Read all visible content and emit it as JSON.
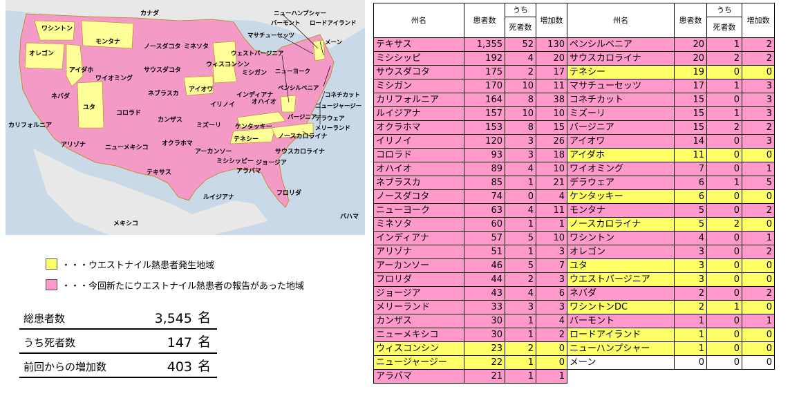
{
  "map": {
    "colors": {
      "water": "#c9d9e8",
      "land": "#e8e8e8",
      "yellow": "#ffff99",
      "pink": "#f49ac6",
      "border": "#b8860b"
    },
    "labels": {
      "canada": "カナダ",
      "washington": "ワシントン",
      "montana": "モンタナ",
      "oregon": "オレゴン",
      "idaho": "アイダホ",
      "north_dakota": "ノースダコタ",
      "minnesota": "ミネソタ",
      "south_dakota": "サウスダコタ",
      "wyoming": "ワイオミング",
      "wisconsin": "ウィスコンシン",
      "michigan": "ミシガン",
      "nebraska": "ネブラスカ",
      "iowa": "アイオワ",
      "illinois": "イリノイ",
      "indiana": "インディアナ",
      "ohio": "オハイオ",
      "nevada": "ネバダ",
      "utah": "ユタ",
      "colorado": "コロラド",
      "kansas": "カンザス",
      "missouri": "ミズーリ",
      "kentucky": "ケンタッキー",
      "california": "カリフォルニア",
      "arizona": "アリゾナ",
      "new_mexico": "ニューメキシコ",
      "oklahoma": "オクラホマ",
      "arkansas": "アーカンソー",
      "tennessee": "テネシー",
      "north_carolina": "ノースカロライナ",
      "south_carolina": "サウスカロライナ",
      "mississippi": "ミシシッピー",
      "alabama": "アラバマ",
      "georgia": "ジョージア",
      "texas": "テキサス",
      "louisiana": "ルイジアナ",
      "florida": "フロリダ",
      "mexico": "メキシコ",
      "bahamas": "バハマ",
      "new_hampshire": "ニューハンプシャー",
      "vermont": "バーモント",
      "rhode_island": "ロードアイランド",
      "massachusetts": "マサチューセッツ",
      "maine": "メーン",
      "west_virginia": "ウェストバージニア",
      "new_york": "ニューヨーク",
      "pennsylvania": "ペンシルベニア",
      "connecticut": "コネチカット",
      "new_jersey": "ニュージャージー",
      "virginia": "バージニア",
      "delaware": "デラウェア",
      "maryland": "メリーランド"
    }
  },
  "legend": {
    "yellow_text": "・・・ウエストナイル熱患者発生地域",
    "pink_text": "・・・今回新たにウエストナイル熱患者の報告があった地域",
    "yellow_color": "#ffff66",
    "pink_color": "#ff99cc"
  },
  "summary": [
    {
      "label": "総患者数",
      "value": "3,545",
      "unit": "名"
    },
    {
      "label": "うち死者数",
      "value": "147",
      "unit": "名"
    },
    {
      "label": "前回からの増加数",
      "value": "403",
      "unit": "名"
    }
  ],
  "table": {
    "headers": {
      "state": "州名",
      "patients": "患者数",
      "uchi": "うち",
      "deaths": "死者数",
      "increase": "増加数"
    },
    "left": [
      {
        "state": "テキサス",
        "patients": "1,355",
        "deaths": "52",
        "increase": "130",
        "color": "pink"
      },
      {
        "state": "ミシシッピ",
        "patients": "192",
        "deaths": "4",
        "increase": "20",
        "color": "pink"
      },
      {
        "state": "サウスダコタ",
        "patients": "175",
        "deaths": "2",
        "increase": "17",
        "color": "pink"
      },
      {
        "state": "ミシガン",
        "patients": "170",
        "deaths": "10",
        "increase": "11",
        "color": "pink"
      },
      {
        "state": "カリフォルニア",
        "patients": "164",
        "deaths": "8",
        "increase": "38",
        "color": "pink"
      },
      {
        "state": "ルイジアナ",
        "patients": "157",
        "deaths": "10",
        "increase": "10",
        "color": "pink"
      },
      {
        "state": "オクラホマ",
        "patients": "153",
        "deaths": "8",
        "increase": "15",
        "color": "pink"
      },
      {
        "state": "イリノイ",
        "patients": "120",
        "deaths": "3",
        "increase": "26",
        "color": "pink"
      },
      {
        "state": "コロラド",
        "patients": "93",
        "deaths": "3",
        "increase": "18",
        "color": "pink"
      },
      {
        "state": "オハイオ",
        "patients": "89",
        "deaths": "4",
        "increase": "10",
        "color": "pink"
      },
      {
        "state": "ネブラスカ",
        "patients": "85",
        "deaths": "1",
        "increase": "21",
        "color": "pink"
      },
      {
        "state": "ノースダコタ",
        "patients": "74",
        "deaths": "0",
        "increase": "4",
        "color": "pink"
      },
      {
        "state": "ニューヨーク",
        "patients": "63",
        "deaths": "4",
        "increase": "11",
        "color": "pink"
      },
      {
        "state": "ミネソタ",
        "patients": "60",
        "deaths": "1",
        "increase": "1",
        "color": "pink"
      },
      {
        "state": "インディアナ",
        "patients": "57",
        "deaths": "5",
        "increase": "10",
        "color": "pink"
      },
      {
        "state": "アリゾナ",
        "patients": "51",
        "deaths": "1",
        "increase": "3",
        "color": "pink"
      },
      {
        "state": "アーカンソー",
        "patients": "46",
        "deaths": "5",
        "increase": "7",
        "color": "pink"
      },
      {
        "state": "フロリダ",
        "patients": "44",
        "deaths": "2",
        "increase": "3",
        "color": "pink"
      },
      {
        "state": "ジョージア",
        "patients": "43",
        "deaths": "4",
        "increase": "6",
        "color": "pink"
      },
      {
        "state": "メリーランド",
        "patients": "33",
        "deaths": "3",
        "increase": "3",
        "color": "pink"
      },
      {
        "state": "カンザス",
        "patients": "30",
        "deaths": "1",
        "increase": "4",
        "color": "pink"
      },
      {
        "state": "ニューメキシコ",
        "patients": "30",
        "deaths": "1",
        "increase": "2",
        "color": "pink"
      },
      {
        "state": "ウィスコンシン",
        "patients": "23",
        "deaths": "2",
        "increase": "0",
        "color": "yellow"
      },
      {
        "state": "ニュージャージー",
        "patients": "22",
        "deaths": "1",
        "increase": "0",
        "color": "yellow"
      },
      {
        "state": "アラバマ",
        "patients": "21",
        "deaths": "1",
        "increase": "1",
        "color": "pink"
      }
    ],
    "right": [
      {
        "state": "ペンシルベニア",
        "patients": "20",
        "deaths": "1",
        "increase": "2",
        "color": "pink"
      },
      {
        "state": "サウスカロライナ",
        "patients": "20",
        "deaths": "2",
        "increase": "2",
        "color": "pink"
      },
      {
        "state": "テネシー",
        "patients": "19",
        "deaths": "0",
        "increase": "0",
        "color": "yellow"
      },
      {
        "state": "マサチューセッツ",
        "patients": "17",
        "deaths": "1",
        "increase": "3",
        "color": "pink"
      },
      {
        "state": "コネチカット",
        "patients": "15",
        "deaths": "0",
        "increase": "3",
        "color": "pink"
      },
      {
        "state": "ミズーリ",
        "patients": "15",
        "deaths": "1",
        "increase": "3",
        "color": "pink"
      },
      {
        "state": "バージニア",
        "patients": "15",
        "deaths": "2",
        "increase": "2",
        "color": "pink"
      },
      {
        "state": "アイオワ",
        "patients": "14",
        "deaths": "0",
        "increase": "3",
        "color": "pink"
      },
      {
        "state": "アイダホ",
        "patients": "11",
        "deaths": "0",
        "increase": "0",
        "color": "yellow"
      },
      {
        "state": "ワイオミング",
        "patients": "7",
        "deaths": "0",
        "increase": "1",
        "color": "pink"
      },
      {
        "state": "デラウェア",
        "patients": "6",
        "deaths": "1",
        "increase": "5",
        "color": "pink"
      },
      {
        "state": "ケンタッキー",
        "patients": "6",
        "deaths": "0",
        "increase": "0",
        "color": "yellow"
      },
      {
        "state": "モンタナ",
        "patients": "5",
        "deaths": "0",
        "increase": "2",
        "color": "pink"
      },
      {
        "state": "ノースカロライナ",
        "patients": "5",
        "deaths": "2",
        "increase": "0",
        "color": "yellow"
      },
      {
        "state": "ワシントン",
        "patients": "4",
        "deaths": "0",
        "increase": "1",
        "color": "pink"
      },
      {
        "state": "オレゴン",
        "patients": "3",
        "deaths": "0",
        "increase": "2",
        "color": "pink"
      },
      {
        "state": "ユタ",
        "patients": "3",
        "deaths": "0",
        "increase": "0",
        "color": "yellow"
      },
      {
        "state": "ウエストバージニア",
        "patients": "3",
        "deaths": "0",
        "increase": "0",
        "color": "yellow"
      },
      {
        "state": "ネバダ",
        "patients": "2",
        "deaths": "0",
        "increase": "2",
        "color": "pink"
      },
      {
        "state": "ワシントンDC",
        "patients": "2",
        "deaths": "1",
        "increase": "0",
        "color": "yellow"
      },
      {
        "state": "バーモント",
        "patients": "1",
        "deaths": "0",
        "increase": "1",
        "color": "pink"
      },
      {
        "state": "ロードアイランド",
        "patients": "1",
        "deaths": "0",
        "increase": "0",
        "color": "yellow"
      },
      {
        "state": "ニューハンプシャー",
        "patients": "1",
        "deaths": "0",
        "increase": "0",
        "color": "yellow"
      },
      {
        "state": "メーン",
        "patients": "0",
        "deaths": "0",
        "increase": "0",
        "color": "white"
      }
    ]
  }
}
